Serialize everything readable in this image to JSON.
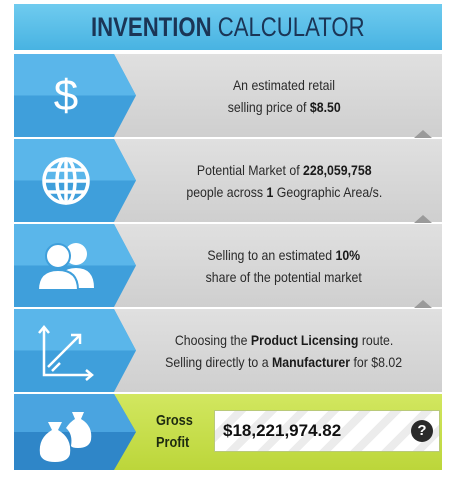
{
  "header": {
    "title_bold": "INVENTION",
    "title_rest": "CALCULATOR"
  },
  "rows": [
    {
      "icon": "$",
      "lines": [
        [
          {
            "text": "An estimated retail"
          }
        ],
        [
          {
            "text": "selling price of "
          },
          {
            "text": "$8.50",
            "bold": true
          }
        ]
      ]
    },
    {
      "lines": [
        [
          {
            "text": "Potential Market of "
          },
          {
            "text": "228,059,758",
            "bold": true
          }
        ],
        [
          {
            "text": "people across "
          },
          {
            "text": "1",
            "bold": true
          },
          {
            "text": " Geographic Area/s."
          }
        ]
      ]
    },
    {
      "lines": [
        [
          {
            "text": "Selling to an estimated "
          },
          {
            "text": "10%",
            "bold": true
          }
        ],
        [
          {
            "text": "share of the potential market"
          }
        ]
      ]
    },
    {
      "lines": [
        [
          {
            "text": "Choosing the "
          },
          {
            "text": "Product Licensing",
            "bold": true
          },
          {
            "text": " route."
          }
        ],
        [
          {
            "text": "Selling directly to a "
          },
          {
            "text": "Manufacturer",
            "bold": true
          },
          {
            "text": " for $8.02"
          }
        ]
      ]
    }
  ],
  "result": {
    "label_lines": [
      "Gross",
      "Profit"
    ],
    "value": "$18,221,974.82",
    "help": "?"
  }
}
